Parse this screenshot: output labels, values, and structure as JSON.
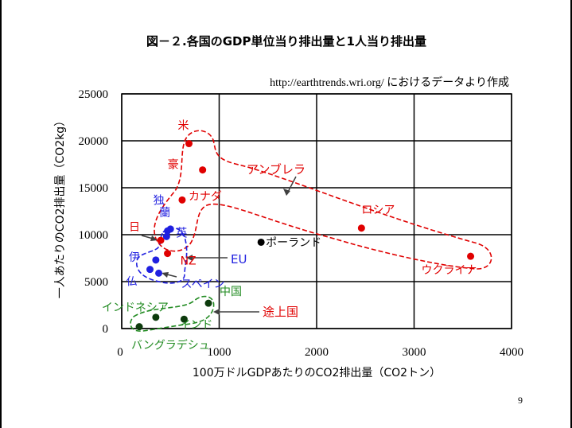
{
  "slide": {
    "title": "図－２.各国のGDP単位当り排出量と1人当り排出量",
    "source": "http://earthtrends.wri.org/ におけるデータより作成",
    "page_number": "9"
  },
  "colors": {
    "developed": "#e00000",
    "eu": "#2020e0",
    "developing": "#228b22",
    "grid": "#000000",
    "arrow": "#404040"
  },
  "chart_data": {
    "type": "scatter",
    "title": "図－２.各国のGDP単位当り排出量と1人当り排出量",
    "xlabel": "100万ドルGDPあたりのCO2排出量（CO2トン）",
    "ylabel": "一人あたりのCO2排出量（CO2kg）",
    "xlim": [
      0,
      4000
    ],
    "ylim": [
      0,
      25000
    ],
    "xticks": [
      0,
      1000,
      2000,
      3000,
      4000
    ],
    "yticks": [
      0,
      5000,
      10000,
      15000,
      20000,
      25000
    ],
    "grid": true,
    "points": [
      {
        "label": "米",
        "x": 690,
        "y": 19700,
        "group": "red"
      },
      {
        "label": "豪",
        "x": 830,
        "y": 16900,
        "group": "red"
      },
      {
        "label": "カナダ",
        "x": 620,
        "y": 13700,
        "group": "red"
      },
      {
        "label": "日",
        "x": 400,
        "y": 9400,
        "group": "red"
      },
      {
        "label": "NZ",
        "x": 470,
        "y": 8000,
        "group": "red"
      },
      {
        "label": "ロシア",
        "x": 2460,
        "y": 10700,
        "group": "red"
      },
      {
        "label": "ウクライナ",
        "x": 3580,
        "y": 7700,
        "group": "red"
      },
      {
        "label": "独",
        "x": 470,
        "y": 10400,
        "group": "blue"
      },
      {
        "label": "蘭",
        "x": 500,
        "y": 10600,
        "group": "blue"
      },
      {
        "label": "英",
        "x": 460,
        "y": 9800,
        "group": "blue"
      },
      {
        "label": "伊",
        "x": 350,
        "y": 7300,
        "group": "blue"
      },
      {
        "label": "仏",
        "x": 290,
        "y": 6300,
        "group": "blue"
      },
      {
        "label": "スペイン",
        "x": 380,
        "y": 5900,
        "group": "blue"
      },
      {
        "label": "ポーランド",
        "x": 1430,
        "y": 9200,
        "group": "black"
      },
      {
        "label": "中国",
        "x": 890,
        "y": 2700,
        "group": "green"
      },
      {
        "label": "インド",
        "x": 640,
        "y": 1000,
        "group": "green"
      },
      {
        "label": "インドネシア",
        "x": 350,
        "y": 1200,
        "group": "green"
      },
      {
        "label": "バングラデシュ",
        "x": 180,
        "y": 200,
        "group": "green"
      }
    ],
    "annotations": {
      "umbrella": "アンブレラ",
      "eu": "EU",
      "developing": "途上国"
    }
  }
}
